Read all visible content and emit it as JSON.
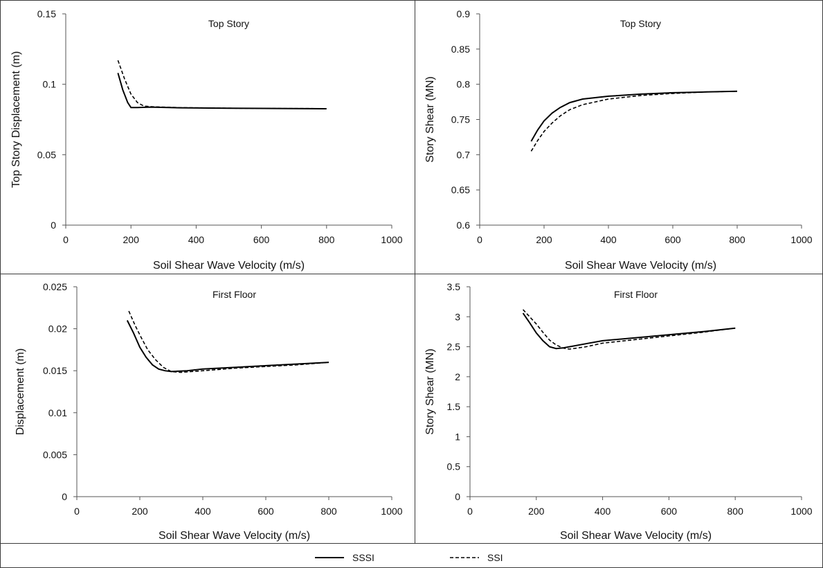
{
  "legend": [
    {
      "name": "SSSI",
      "style": "solid"
    },
    {
      "name": "SSI",
      "style": "dashed"
    }
  ],
  "chart_data": [
    {
      "type": "line",
      "title": "Top Story",
      "xlabel": "Soil Shear Wave Velocity (m/s)",
      "ylabel": "Top Story Displacement (m)",
      "xlim": [
        0,
        1000
      ],
      "ylim": [
        0,
        0.15
      ],
      "xticks": [
        "0",
        "200",
        "400",
        "600",
        "800",
        "1000"
      ],
      "yticks": [
        "0",
        "0.05",
        "0.1",
        "0.15"
      ],
      "series": [
        {
          "name": "SSSI",
          "style": "solid",
          "points": [
            [
              160,
              0.108
            ],
            [
              175,
              0.096
            ],
            [
              190,
              0.087
            ],
            [
              200,
              0.0835
            ],
            [
              220,
              0.0835
            ],
            [
              260,
              0.0838
            ],
            [
              350,
              0.0833
            ],
            [
              500,
              0.083
            ],
            [
              650,
              0.0828
            ],
            [
              800,
              0.0826
            ]
          ]
        },
        {
          "name": "SSI",
          "style": "dashed",
          "points": [
            [
              160,
              0.117
            ],
            [
              180,
              0.104
            ],
            [
              200,
              0.093
            ],
            [
              220,
              0.087
            ],
            [
              240,
              0.0845
            ],
            [
              270,
              0.084
            ],
            [
              350,
              0.0834
            ],
            [
              500,
              0.083
            ],
            [
              650,
              0.0828
            ],
            [
              800,
              0.0827
            ]
          ]
        }
      ]
    },
    {
      "type": "line",
      "title": "Top Story",
      "xlabel": "Soil Shear Wave Velocity (m/s)",
      "ylabel": "Story Shear (MN)",
      "xlim": [
        0,
        1000
      ],
      "ylim": [
        0.6,
        0.9
      ],
      "xticks": [
        "0",
        "200",
        "400",
        "600",
        "800",
        "1000"
      ],
      "yticks": [
        "0.6",
        "0.65",
        "0.7",
        "0.75",
        "0.8",
        "0.85",
        "0.9"
      ],
      "series": [
        {
          "name": "SSSI",
          "style": "solid",
          "points": [
            [
              160,
              0.719
            ],
            [
              180,
              0.735
            ],
            [
              200,
              0.748
            ],
            [
              225,
              0.759
            ],
            [
              250,
              0.767
            ],
            [
              280,
              0.774
            ],
            [
              320,
              0.779
            ],
            [
              400,
              0.783
            ],
            [
              500,
              0.786
            ],
            [
              600,
              0.788
            ],
            [
              700,
              0.789
            ],
            [
              800,
              0.79
            ]
          ]
        },
        {
          "name": "SSI",
          "style": "dashed",
          "points": [
            [
              160,
              0.705
            ],
            [
              180,
              0.72
            ],
            [
              200,
              0.733
            ],
            [
              225,
              0.745
            ],
            [
              250,
              0.755
            ],
            [
              280,
              0.764
            ],
            [
              320,
              0.771
            ],
            [
              400,
              0.779
            ],
            [
              500,
              0.784
            ],
            [
              600,
              0.787
            ],
            [
              700,
              0.789
            ],
            [
              800,
              0.79
            ]
          ]
        }
      ]
    },
    {
      "type": "line",
      "title": "First Floor",
      "xlabel": "Soil Shear Wave Velocity (m/s)",
      "ylabel": "Displacement (m)",
      "xlim": [
        0,
        1000
      ],
      "ylim": [
        0,
        0.025
      ],
      "xticks": [
        "0",
        "200",
        "400",
        "600",
        "800",
        "1000"
      ],
      "yticks": [
        "0",
        "0.005",
        "0.01",
        "0.015",
        "0.02",
        "0.025"
      ],
      "series": [
        {
          "name": "SSSI",
          "style": "solid",
          "points": [
            [
              160,
              0.021
            ],
            [
              180,
              0.0195
            ],
            [
              200,
              0.0178
            ],
            [
              220,
              0.0166
            ],
            [
              240,
              0.0157
            ],
            [
              260,
              0.0152
            ],
            [
              280,
              0.015
            ],
            [
              300,
              0.0149
            ],
            [
              350,
              0.015
            ],
            [
              400,
              0.0152
            ],
            [
              500,
              0.0154
            ],
            [
              600,
              0.0156
            ],
            [
              700,
              0.0158
            ],
            [
              800,
              0.016
            ]
          ]
        },
        {
          "name": "SSI",
          "style": "dashed",
          "points": [
            [
              165,
              0.0221
            ],
            [
              185,
              0.0204
            ],
            [
              205,
              0.0189
            ],
            [
              225,
              0.0175
            ],
            [
              250,
              0.0163
            ],
            [
              275,
              0.0154
            ],
            [
              300,
              0.0149
            ],
            [
              330,
              0.0148
            ],
            [
              400,
              0.015
            ],
            [
              500,
              0.0153
            ],
            [
              600,
              0.0155
            ],
            [
              700,
              0.0157
            ],
            [
              800,
              0.016
            ]
          ]
        }
      ]
    },
    {
      "type": "line",
      "title": "First Floor",
      "xlabel": "Soil Shear Wave Velocity (m/s)",
      "ylabel": "Story Shear (MN)",
      "xlim": [
        0,
        1000
      ],
      "ylim": [
        0,
        3.5
      ],
      "xticks": [
        "0",
        "200",
        "400",
        "600",
        "800",
        "1000"
      ],
      "yticks": [
        "0",
        "0.5",
        "1",
        "1.5",
        "2",
        "2.5",
        "3",
        "3.5"
      ],
      "series": [
        {
          "name": "SSSI",
          "style": "solid",
          "points": [
            [
              160,
              3.06
            ],
            [
              180,
              2.9
            ],
            [
              200,
              2.73
            ],
            [
              220,
              2.6
            ],
            [
              240,
              2.5
            ],
            [
              260,
              2.47
            ],
            [
              280,
              2.48
            ],
            [
              300,
              2.5
            ],
            [
              350,
              2.55
            ],
            [
              400,
              2.6
            ],
            [
              500,
              2.65
            ],
            [
              600,
              2.7
            ],
            [
              700,
              2.75
            ],
            [
              800,
              2.81
            ]
          ]
        },
        {
          "name": "SSI",
          "style": "dashed",
          "points": [
            [
              160,
              3.12
            ],
            [
              180,
              3.0
            ],
            [
              200,
              2.88
            ],
            [
              220,
              2.74
            ],
            [
              240,
              2.61
            ],
            [
              260,
              2.53
            ],
            [
              280,
              2.48
            ],
            [
              300,
              2.46
            ],
            [
              350,
              2.5
            ],
            [
              400,
              2.56
            ],
            [
              500,
              2.62
            ],
            [
              600,
              2.68
            ],
            [
              700,
              2.74
            ],
            [
              800,
              2.81
            ]
          ]
        }
      ]
    }
  ]
}
